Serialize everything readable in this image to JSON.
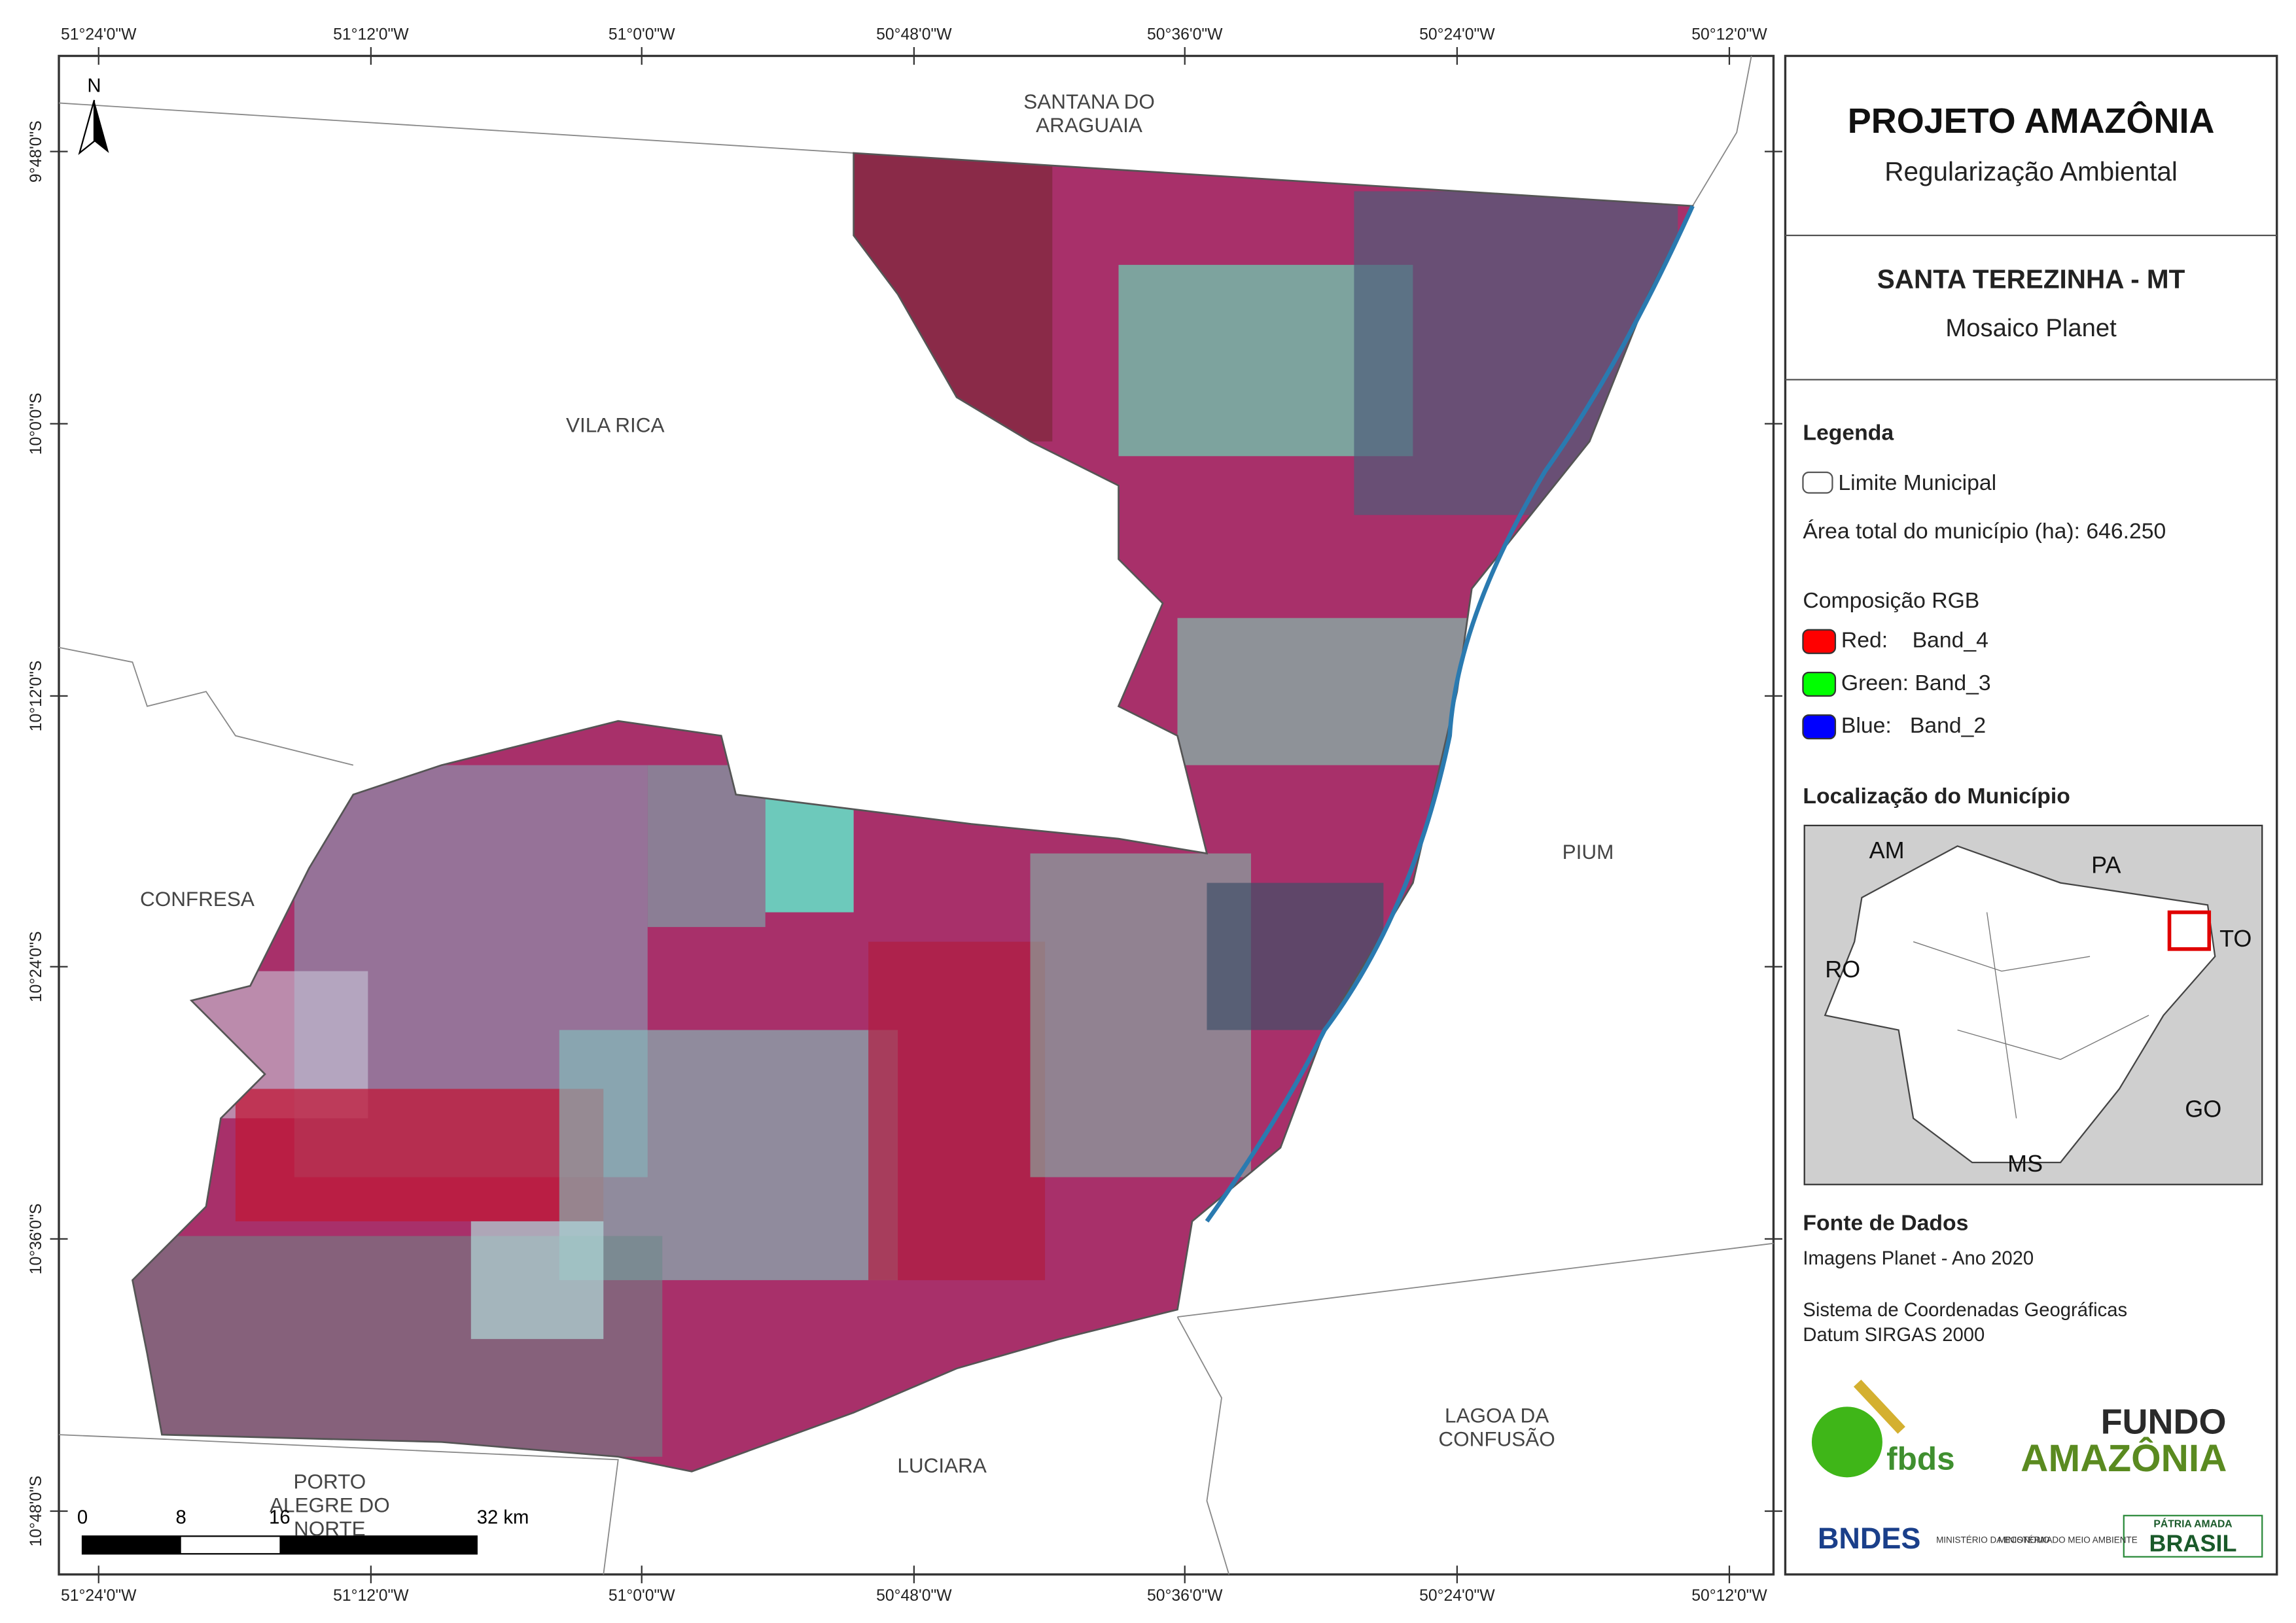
{
  "map": {
    "longitude_labels": [
      "51°24'0\"W",
      "51°12'0\"W",
      "51°0'0\"W",
      "50°48'0\"W",
      "50°36'0\"W",
      "50°24'0\"W",
      "50°12'0\"W"
    ],
    "latitude_labels": [
      "9°48'0\"S",
      "10°0'0\"S",
      "10°12'0\"S",
      "10°24'0\"S",
      "10°36'0\"S",
      "10°48'0\"S"
    ],
    "place_names": [
      [
        "SANTANA DO",
        "ARAGUAIA"
      ],
      [
        "VILA RICA"
      ],
      [
        "CONFRESA"
      ],
      [
        "PIUM"
      ],
      [
        "LAGOA DA",
        "CONFUSÃO"
      ],
      [
        "LUCIARA"
      ],
      [
        "PORTO",
        "ALEGRE DO",
        "NORTE"
      ]
    ],
    "north": "N",
    "scale_labels": [
      "0",
      "8",
      "16",
      "32 km"
    ]
  },
  "panel": {
    "title": "PROJETO AMAZÔNIA",
    "subtitle": "Regularização Ambiental",
    "municipality": "SANTA TEREZINHA - MT",
    "product": "Mosaico Planet",
    "legend": {
      "title": "Legenda",
      "boundary": "Limite Municipal",
      "area": "Área total do município (ha): 646.250",
      "rgb_title": "Composição RGB",
      "bands": [
        {
          "label": "Red:    Band_4",
          "color": "#ff0000"
        },
        {
          "label": "Green: Band_3",
          "color": "#00ff00"
        },
        {
          "label": "Blue:   Band_2",
          "color": "#0000ff"
        }
      ]
    },
    "location": {
      "title": "Localização do Município",
      "labels": [
        "AM",
        "PA",
        "TO",
        "RO",
        "GO",
        "MS"
      ]
    },
    "sources": {
      "title": "Fonte de Dados",
      "lines": [
        "Imagens Planet - Ano 2020",
        "Sistema de Coordenadas Geográficas",
        "Datum SIRGAS 2000"
      ]
    },
    "logos": [
      "fbds",
      "FUNDO",
      "AMAZÔNIA",
      "BNDES",
      "MINISTÉRIO DA ECONOMIA",
      "MINISTÉRIO DO MEIO AMBIENTE",
      "PÁTRIA AMADA",
      "BRASIL"
    ]
  }
}
